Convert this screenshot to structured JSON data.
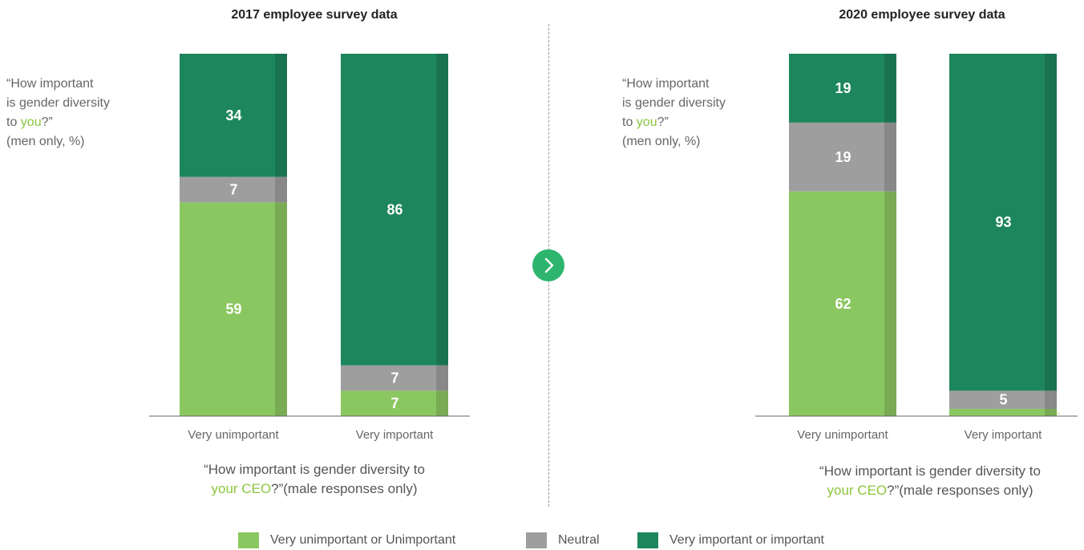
{
  "colors": {
    "unimportant": "#8bc760",
    "neutral": "#9e9e9e",
    "important": "#1e865d",
    "highlight": "#8cc63f",
    "arrow": "#2db56e"
  },
  "question_side": {
    "line1": "“How important",
    "line2": "is gender diversity",
    "line3_pre": "to ",
    "line3_hl": "you",
    "line3_post": "?”",
    "line4": "(men only, %)"
  },
  "question_bottom": {
    "line1": "“How important is gender diversity to",
    "line2_hl": "your CEO",
    "line2_post": "?”(male responses only)"
  },
  "legend": [
    {
      "label": "Very unimportant or Unimportant",
      "color": "#8bc760"
    },
    {
      "label": "Neutral",
      "color": "#9e9e9e"
    },
    {
      "label": "Very important or important",
      "color": "#1e865d"
    }
  ],
  "chart_data": [
    {
      "type": "bar",
      "stacked": true,
      "title": "2017 employee survey data",
      "categories": [
        "Very unimportant",
        "Very important"
      ],
      "ylim": [
        0,
        100
      ],
      "series": [
        {
          "name": "Very unimportant or Unimportant",
          "values": [
            59,
            7
          ]
        },
        {
          "name": "Neutral",
          "values": [
            7,
            7
          ]
        },
        {
          "name": "Very important or important",
          "values": [
            34,
            86
          ]
        }
      ]
    },
    {
      "type": "bar",
      "stacked": true,
      "title": "2020 employee survey data",
      "categories": [
        "Very unimportant",
        "Very important"
      ],
      "ylim": [
        0,
        100
      ],
      "series": [
        {
          "name": "Very unimportant or Unimportant",
          "values": [
            62,
            2
          ]
        },
        {
          "name": "Neutral",
          "values": [
            19,
            5
          ]
        },
        {
          "name": "Very important or important",
          "values": [
            19,
            93
          ]
        }
      ]
    }
  ]
}
